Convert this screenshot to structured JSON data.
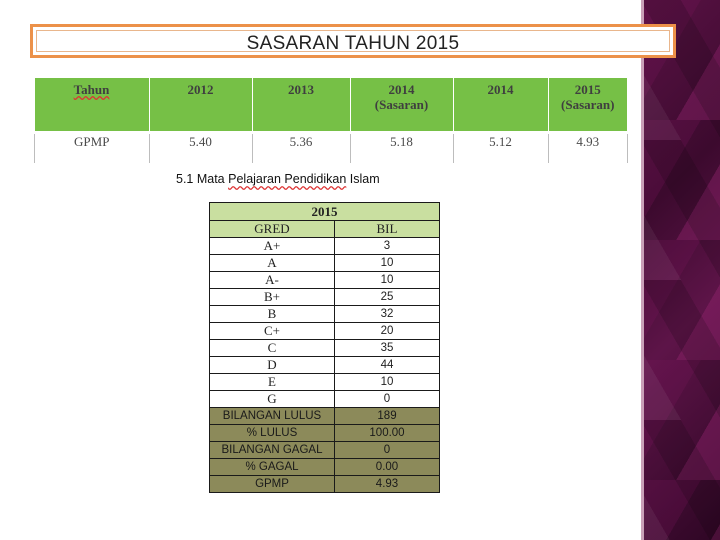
{
  "title": "SASARAN TAHUN 2015",
  "gpmp_table": {
    "headers": [
      {
        "line1": "Tahun",
        "line2": ""
      },
      {
        "line1": "2012",
        "line2": ""
      },
      {
        "line1": "2013",
        "line2": ""
      },
      {
        "line1": "2014",
        "line2": "(Sasaran)"
      },
      {
        "line1": "2014",
        "line2": ""
      },
      {
        "line1": "2015",
        "line2": "(Sasaran)"
      }
    ],
    "row": [
      "GPMP",
      "5.40",
      "5.36",
      "5.18",
      "5.12",
      "4.93"
    ]
  },
  "caption": {
    "prefix": "5.1 Mata ",
    "wavy": "Pelajaran Pendidikan",
    "suffix": " Islam"
  },
  "grade_table": {
    "year": "2015",
    "col_headers": [
      "GRED",
      "BIL"
    ],
    "grades": [
      {
        "grade": "A+",
        "count": "3"
      },
      {
        "grade": "A",
        "count": "10"
      },
      {
        "grade": "A-",
        "count": "10"
      },
      {
        "grade": "B+",
        "count": "25"
      },
      {
        "grade": "B",
        "count": "32"
      },
      {
        "grade": "C+",
        "count": "20"
      },
      {
        "grade": "C",
        "count": "35"
      },
      {
        "grade": "D",
        "count": "44"
      },
      {
        "grade": "E",
        "count": "10"
      },
      {
        "grade": "G",
        "count": "0"
      }
    ],
    "summary": [
      {
        "label": "BILANGAN LULUS",
        "value": "189"
      },
      {
        "label": "% LULUS",
        "value": "100.00"
      },
      {
        "label": "BILANGAN GAGAL",
        "value": "0"
      },
      {
        "label": "% GAGAL",
        "value": "0.00"
      },
      {
        "label": "GPMP",
        "value": "4.93"
      }
    ]
  },
  "colors": {
    "title_border": "#ec9149",
    "header_green": "#76c046",
    "light_green": "#c9dfa0",
    "olive": "#8c8a5a",
    "side_band": "#4a0e38"
  }
}
